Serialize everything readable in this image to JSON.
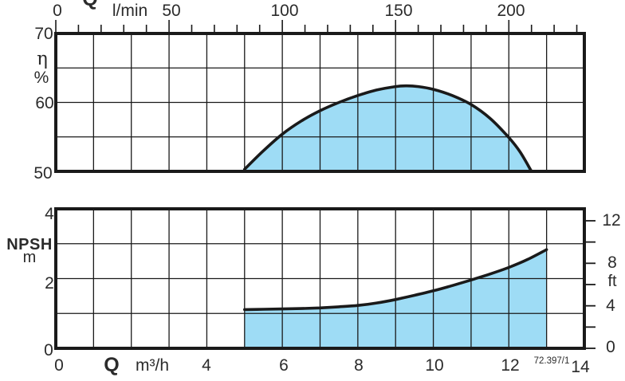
{
  "colors": {
    "background": "#ffffff",
    "line": "#1a1a1a",
    "text": "#2b2b2b",
    "area_fill": "#9edcf5"
  },
  "chart_data": [
    {
      "id": "efficiency-chart",
      "type": "area",
      "title": "",
      "x_axis_top": {
        "quantity": "Q",
        "unit": "l/min",
        "labeled_ticks": [
          "0",
          "50",
          "100",
          "150",
          "200"
        ],
        "labeled_tick_values_lmin": [
          0,
          50,
          100,
          150,
          200
        ],
        "minor_tick_step_lmin": 10,
        "tick_range_lmin": [
          0,
          230
        ],
        "xlim_m3h": [
          0,
          14
        ],
        "vertical_gridline_step_m3h": 1
      },
      "y_axis": {
        "symbol": "η",
        "unit": "%",
        "labeled_ticks": [
          "70",
          "60",
          "50"
        ],
        "ylim": [
          50,
          70
        ],
        "gridline_step": 5
      },
      "series": [
        {
          "name": "efficiency",
          "x_m3h": [
            5.0,
            5.5,
            6.0,
            6.5,
            7.0,
            7.5,
            8.0,
            8.5,
            9.0,
            9.3,
            9.6,
            10.0,
            10.5,
            11.0,
            11.5,
            12.0,
            12.3,
            12.6
          ],
          "y_pct": [
            50.3,
            53.0,
            55.4,
            57.3,
            58.8,
            60.0,
            61.0,
            61.8,
            62.3,
            62.4,
            62.3,
            61.9,
            61.0,
            59.7,
            57.7,
            54.9,
            52.8,
            50.0
          ]
        }
      ]
    },
    {
      "id": "npsh-chart",
      "type": "area",
      "title": "",
      "x_axis_bottom": {
        "quantity": "Q",
        "unit": "m³/h",
        "labeled_ticks": [
          "0",
          "4",
          "6",
          "8",
          "10",
          "12",
          "14"
        ],
        "labeled_tick_values": [
          0,
          4,
          6,
          8,
          10,
          12,
          14
        ],
        "xlim": [
          0,
          14
        ],
        "vertical_gridline_step": 1
      },
      "y_axis_left": {
        "label": "NPSH",
        "unit": "m",
        "labeled_ticks": [
          "4",
          "2",
          "0"
        ],
        "ylim_m": [
          0,
          4
        ],
        "gridline_step_m": 1
      },
      "y_axis_right": {
        "unit": "ft",
        "labeled_ticks": [
          "12",
          "8",
          "4",
          "0"
        ],
        "labeled_tick_values_ft": [
          12,
          8,
          4,
          0
        ],
        "tick_step_ft": 2,
        "tick_range_ft": [
          0,
          12
        ]
      },
      "annotation": "72.397/1",
      "series": [
        {
          "name": "npsh",
          "x_m3h": [
            5.0,
            5.5,
            6.0,
            6.5,
            7.0,
            7.5,
            8.0,
            8.5,
            9.0,
            9.5,
            10.0,
            10.5,
            11.0,
            11.5,
            12.0,
            12.5,
            13.0
          ],
          "y_m": [
            1.11,
            1.12,
            1.13,
            1.14,
            1.16,
            1.19,
            1.23,
            1.3,
            1.4,
            1.52,
            1.65,
            1.8,
            1.96,
            2.13,
            2.32,
            2.55,
            2.83
          ]
        }
      ]
    }
  ]
}
